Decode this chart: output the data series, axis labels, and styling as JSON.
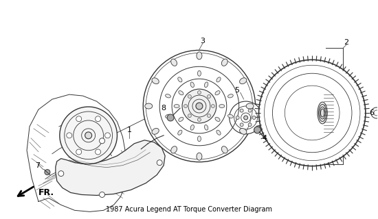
{
  "title": "1987 Acura Legend AT Torque Converter Diagram",
  "background_color": "#ffffff",
  "line_color": "#333333",
  "figsize": [
    5.5,
    3.2
  ],
  "dpi": 100,
  "xlim": [
    0,
    550
  ],
  "ylim": [
    0,
    320
  ]
}
